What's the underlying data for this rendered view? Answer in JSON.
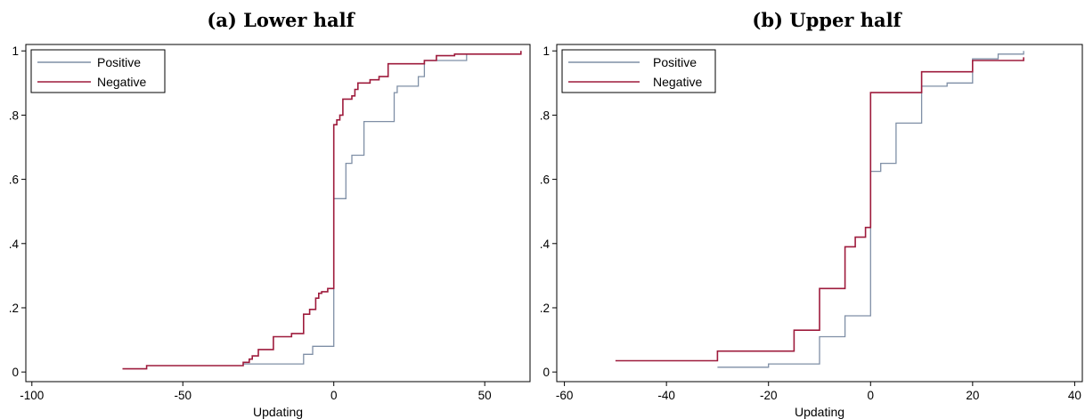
{
  "chart_data": [
    {
      "type": "line",
      "title": "(a) Lower half",
      "xlabel": "Updating",
      "ylabel": "",
      "xlim": [
        -102,
        65
      ],
      "ylim": [
        -0.03,
        1.02
      ],
      "xticks": [
        -100,
        -50,
        0,
        50
      ],
      "xtick_labels": [
        "-100",
        "-50",
        "0",
        "50"
      ],
      "yticks": [
        0,
        0.2,
        0.4,
        0.6,
        0.8,
        1
      ],
      "ytick_labels": [
        "0",
        ".2",
        ".4",
        ".6",
        ".8",
        "1"
      ],
      "grid": false,
      "legend": "top-left",
      "series": [
        {
          "name": "Positive",
          "color": "#7f8fa6",
          "step": "post",
          "points": [
            [
              -30,
              0.025
            ],
            [
              -10,
              0.055
            ],
            [
              -7,
              0.08
            ],
            [
              0,
              0.54
            ],
            [
              3,
              0.54
            ],
            [
              4,
              0.65
            ],
            [
              6,
              0.675
            ],
            [
              10,
              0.78
            ],
            [
              20,
              0.87
            ],
            [
              21,
              0.89
            ],
            [
              28,
              0.92
            ],
            [
              30,
              0.97
            ],
            [
              44,
              0.99
            ],
            [
              60,
              0.99
            ],
            [
              62,
              1.0
            ]
          ]
        },
        {
          "name": "Negative",
          "color": "#9e1b3c",
          "step": "post",
          "points": [
            [
              -70,
              0.01
            ],
            [
              -62,
              0.02
            ],
            [
              -30,
              0.03
            ],
            [
              -28,
              0.04
            ],
            [
              -27,
              0.05
            ],
            [
              -25,
              0.07
            ],
            [
              -20,
              0.11
            ],
            [
              -14,
              0.12
            ],
            [
              -10,
              0.18
            ],
            [
              -8,
              0.195
            ],
            [
              -6,
              0.23
            ],
            [
              -5,
              0.245
            ],
            [
              -4,
              0.25
            ],
            [
              -2,
              0.26
            ],
            [
              0,
              0.77
            ],
            [
              1,
              0.785
            ],
            [
              2,
              0.8
            ],
            [
              3,
              0.85
            ],
            [
              6,
              0.86
            ],
            [
              7,
              0.88
            ],
            [
              8,
              0.9
            ],
            [
              12,
              0.91
            ],
            [
              15,
              0.92
            ],
            [
              18,
              0.96
            ],
            [
              30,
              0.97
            ],
            [
              34,
              0.985
            ],
            [
              40,
              0.99
            ],
            [
              62,
              1.0
            ]
          ]
        }
      ]
    },
    {
      "type": "line",
      "title": "(b) Upper half",
      "xlabel": "Updating",
      "ylabel": "",
      "xlim": [
        -61.5,
        41.5
      ],
      "ylim": [
        -0.03,
        1.02
      ],
      "xticks": [
        -60,
        -40,
        -20,
        0,
        20,
        40
      ],
      "xtick_labels": [
        "-60",
        "-40",
        "-20",
        "0",
        "20",
        "40"
      ],
      "yticks": [
        0,
        0.2,
        0.4,
        0.6,
        0.8,
        1
      ],
      "ytick_labels": [
        "0",
        ".2",
        ".4",
        ".6",
        ".8",
        "1"
      ],
      "grid": false,
      "legend": "top-left",
      "series": [
        {
          "name": "Positive",
          "color": "#7f8fa6",
          "step": "post",
          "points": [
            [
              -30,
              0.015
            ],
            [
              -20,
              0.025
            ],
            [
              -10,
              0.11
            ],
            [
              -5,
              0.175
            ],
            [
              0,
              0.625
            ],
            [
              2,
              0.65
            ],
            [
              5,
              0.775
            ],
            [
              10,
              0.89
            ],
            [
              15,
              0.9
            ],
            [
              20,
              0.975
            ],
            [
              25,
              0.99
            ],
            [
              30,
              1.0
            ]
          ]
        },
        {
          "name": "Negative",
          "color": "#9e1b3c",
          "step": "post",
          "points": [
            [
              -50,
              0.035
            ],
            [
              -30,
              0.065
            ],
            [
              -15,
              0.13
            ],
            [
              -10,
              0.26
            ],
            [
              -5,
              0.39
            ],
            [
              -3,
              0.42
            ],
            [
              -1,
              0.45
            ],
            [
              0,
              0.87
            ],
            [
              10,
              0.935
            ],
            [
              20,
              0.97
            ],
            [
              30,
              0.98
            ]
          ]
        }
      ]
    }
  ]
}
